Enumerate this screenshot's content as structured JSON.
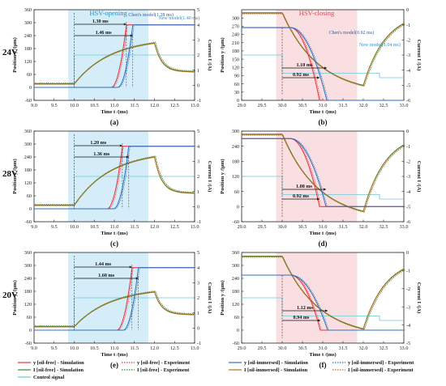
{
  "figure": {
    "row_labels": [
      "24V",
      "28V",
      "20V"
    ],
    "legend": [
      {
        "label": "y [oil-free] - Simulation",
        "color": "#e8323c",
        "dash": "solid"
      },
      {
        "label": "y [oil-free] - Experiment",
        "color": "#e8323c",
        "dash": "dot"
      },
      {
        "label": "y [oil-immersed] - Simulation",
        "color": "#2e6fbf",
        "dash": "solid"
      },
      {
        "label": "y [oil-immersed] - Experiment",
        "color": "#2e6fbf",
        "dash": "dot"
      },
      {
        "label": "I [oil-free] - Simulation",
        "color": "#2a8f2a",
        "dash": "solid"
      },
      {
        "label": "I [oil-free] - Experiment",
        "color": "#2a8f2a",
        "dash": "dot"
      },
      {
        "label": "I [oil-immersed] - Simulation",
        "color": "#b0702a",
        "dash": "solid"
      },
      {
        "label": "I [oil-immersed] - Experiment",
        "color": "#b0702a",
        "dash": "dot"
      },
      {
        "label": "Control signal",
        "color": "#6cc8d8",
        "dash": "solid"
      }
    ],
    "colors": {
      "opening_shade": "#cdeaf7",
      "closing_shade": "#f9d9dd",
      "control": "#6cc8d8"
    }
  },
  "chart_data": [
    {
      "id": "a",
      "type": "line",
      "mode": "open",
      "panel_label": "(a)",
      "title": "HSV-opening",
      "xlabel": "Time t /(ms)",
      "ylabel": "Position y /(μm)",
      "y2label": "Current I /(A)",
      "xlim": [
        9.0,
        13.0
      ],
      "xticks": [
        "9.0",
        "9.5",
        "10.0",
        "10.5",
        "11.0",
        "11.5",
        "12.0",
        "12.5",
        "13.0"
      ],
      "ylim": [
        -60,
        360
      ],
      "yticks": [
        "-60",
        "0",
        "60",
        "120",
        "180",
        "240",
        "300",
        "360"
      ],
      "y2lim": [
        -1,
        5
      ],
      "y2ticks": [
        "-1",
        "0",
        "1",
        "2",
        "3",
        "4",
        "5"
      ],
      "shade": [
        9.85,
        11.85
      ],
      "annotations": [
        {
          "text": "1.30 ms",
          "x0": 10.0,
          "x1": 11.3
        },
        {
          "text": "1.46 ms",
          "x0": 10.0,
          "x1": 11.46
        }
      ],
      "model_labels": [
        "Chen's model(1.28 ms)",
        "New model(1.40 ms)"
      ],
      "series": [
        {
          "name": "y [oil-free] - Simulation",
          "t_switch": 11.3,
          "y_end": 290
        },
        {
          "name": "y [oil-immersed] - Simulation",
          "t_switch": 11.46,
          "y_end": 290
        },
        {
          "name": "I [oil-free] - Simulation",
          "peak_A": 2.8
        },
        {
          "name": "I [oil-immersed] - Simulation",
          "peak_A": 2.8
        }
      ]
    },
    {
      "id": "b",
      "type": "line",
      "mode": "close",
      "panel_label": "(b)",
      "title": "HSV-closing",
      "xlabel": "Time t /(ms)",
      "ylabel": "Position y /(μm)",
      "y2label": "Current I /(A)",
      "xlim": [
        29.0,
        33.0
      ],
      "xticks": [
        "29.0",
        "29.5",
        "30.0",
        "30.5",
        "31.0",
        "31.5",
        "32.0",
        "32.5",
        "33.0"
      ],
      "ylim": [
        0,
        330
      ],
      "yticks": [
        "0",
        "30",
        "60",
        "90",
        "120",
        "150",
        "180",
        "210",
        "240",
        "270",
        "300"
      ],
      "y2lim": [
        -6,
        0
      ],
      "y2ticks": [
        "-6",
        "-5",
        "-4",
        "-3",
        "-2",
        "-1",
        "0"
      ],
      "shade": [
        29.85,
        31.85
      ],
      "annotations": [
        {
          "text": "1.10 ms",
          "x0": 30.0,
          "x1": 31.1
        },
        {
          "text": "0.92 ms",
          "x0": 30.0,
          "x1": 30.92
        }
      ],
      "model_labels": [
        "Chen's model(0.92 ms)",
        "New model(1.04 ms)"
      ],
      "series": [
        {
          "name": "y [oil-free] - Simulation",
          "t_switch": 30.92,
          "y_start": 265
        },
        {
          "name": "y [oil-immersed] - Simulation",
          "t_switch": 31.1,
          "y_start": 265
        },
        {
          "name": "I [oil-free] - Simulation",
          "min_A": -5.0
        },
        {
          "name": "I [oil-immersed] - Simulation",
          "min_A": -5.0
        }
      ]
    },
    {
      "id": "c",
      "type": "line",
      "mode": "open",
      "panel_label": "(c)",
      "title": "",
      "xlabel": "Time t /(ms)",
      "ylabel": "Position y /(μm)",
      "y2label": "Current I /(A)",
      "xlim": [
        9.0,
        13.0
      ],
      "xticks": [
        "9.0",
        "9.5",
        "10.0",
        "10.5",
        "11.0",
        "11.5",
        "12.0",
        "12.5",
        "13.0"
      ],
      "ylim": [
        -60,
        360
      ],
      "yticks": [
        "-60",
        "0",
        "60",
        "120",
        "180",
        "240",
        "300",
        "360"
      ],
      "y2lim": [
        -1,
        5
      ],
      "y2ticks": [
        "-1",
        "0",
        "1",
        "2",
        "3",
        "4",
        "5"
      ],
      "shade": [
        9.85,
        11.85
      ],
      "annotations": [
        {
          "text": "1.20 ms",
          "x0": 10.0,
          "x1": 11.2
        },
        {
          "text": "1.36 ms",
          "x0": 10.0,
          "x1": 11.36
        }
      ],
      "model_labels": [],
      "series": [
        {
          "name": "y [oil-free] - Simulation",
          "t_switch": 11.2,
          "y_end": 290
        },
        {
          "name": "y [oil-immersed] - Simulation",
          "t_switch": 11.36,
          "y_end": 290
        },
        {
          "name": "I [oil-free] - Simulation",
          "peak_A": 3.3
        },
        {
          "name": "I [oil-immersed] - Simulation",
          "peak_A": 3.3
        }
      ]
    },
    {
      "id": "d",
      "type": "line",
      "mode": "close",
      "panel_label": "(d)",
      "title": "",
      "xlabel": "Time t /(ms)",
      "ylabel": "Position y /(μm)",
      "y2label": "Current I /(A)",
      "xlim": [
        29.0,
        33.0
      ],
      "xticks": [
        "29.0",
        "29.5",
        "30.0",
        "30.5",
        "31.0",
        "31.5",
        "32.0",
        "32.5",
        "33.0"
      ],
      "ylim": [
        -60,
        300
      ],
      "yticks": [
        "-60",
        "0",
        "60",
        "120",
        "180",
        "240",
        "300"
      ],
      "y2lim": [
        -6,
        0
      ],
      "y2ticks": [
        "-6",
        "-5",
        "-4",
        "-3",
        "-2",
        "-1",
        "0"
      ],
      "shade": [
        29.85,
        31.85
      ],
      "annotations": [
        {
          "text": "1.08 ms",
          "x0": 30.0,
          "x1": 31.08
        },
        {
          "text": "0.92 ms",
          "x0": 30.0,
          "x1": 30.92
        }
      ],
      "model_labels": [],
      "series": [
        {
          "name": "y [oil-free] - Simulation",
          "t_switch": 30.92,
          "y_start": 270
        },
        {
          "name": "y [oil-immersed] - Simulation",
          "t_switch": 31.08,
          "y_start": 270
        },
        {
          "name": "I [oil-free] - Simulation",
          "min_A": -5.3
        },
        {
          "name": "I [oil-immersed] - Simulation",
          "min_A": -5.3
        }
      ]
    },
    {
      "id": "e",
      "type": "line",
      "mode": "open",
      "panel_label": "(e)",
      "title": "",
      "xlabel": "Time t /(ms)",
      "ylabel": "Position y /(μm)",
      "y2label": "Current I /(A)",
      "xlim": [
        9.0,
        13.0
      ],
      "xticks": [
        "9.0",
        "9.5",
        "10.0",
        "10.5",
        "11.0",
        "11.5",
        "12.0",
        "12.5",
        "13.0"
      ],
      "ylim": [
        -60,
        360
      ],
      "yticks": [
        "-60",
        "0",
        "60",
        "120",
        "180",
        "240",
        "300",
        "360"
      ],
      "y2lim": [
        -1,
        5
      ],
      "y2ticks": [
        "-1",
        "0",
        "1",
        "2",
        "3",
        "4",
        "5"
      ],
      "shade": [
        9.85,
        11.85
      ],
      "annotations": [
        {
          "text": "1.44 ms",
          "x0": 10.0,
          "x1": 11.44
        },
        {
          "text": "1.60 ms",
          "x0": 10.0,
          "x1": 11.6
        }
      ],
      "model_labels": [],
      "series": [
        {
          "name": "y [oil-free] - Simulation",
          "t_switch": 11.44,
          "y_end": 290
        },
        {
          "name": "y [oil-immersed] - Simulation",
          "t_switch": 11.6,
          "y_end": 290
        },
        {
          "name": "I [oil-free] - Simulation",
          "peak_A": 2.4
        },
        {
          "name": "I [oil-immersed] - Simulation",
          "peak_A": 2.4
        }
      ]
    },
    {
      "id": "f",
      "type": "line",
      "mode": "close",
      "panel_label": "(f)",
      "title": "",
      "xlabel": "Time t /(ms)",
      "ylabel": "Position y /(μm)",
      "y2label": "Current I /(A)",
      "xlim": [
        29.0,
        33.0
      ],
      "xticks": [
        "29.0",
        "29.5",
        "30.0",
        "30.5",
        "31.0",
        "31.5",
        "32.0",
        "32.5",
        "33.0"
      ],
      "ylim": [
        -60,
        360
      ],
      "yticks": [
        "-60",
        "0",
        "60",
        "120",
        "180",
        "240",
        "300",
        "360"
      ],
      "y2lim": [
        -5,
        0
      ],
      "y2ticks": [
        "-5",
        "-4",
        "-3",
        "-2",
        "-1",
        "0"
      ],
      "shade": [
        29.85,
        31.85
      ],
      "annotations": [
        {
          "text": "1.12 ms",
          "x0": 30.0,
          "x1": 31.12
        },
        {
          "text": "0.94 ms",
          "x0": 30.0,
          "x1": 30.94
        }
      ],
      "model_labels": [],
      "series": [
        {
          "name": "y [oil-free] - Simulation",
          "t_switch": 30.94,
          "y_start": 255
        },
        {
          "name": "y [oil-immersed] - Simulation",
          "t_switch": 31.12,
          "y_start": 255
        },
        {
          "name": "I [oil-free] - Simulation",
          "min_A": -4.2
        },
        {
          "name": "I [oil-immersed] - Simulation",
          "min_A": -4.2
        }
      ]
    }
  ]
}
